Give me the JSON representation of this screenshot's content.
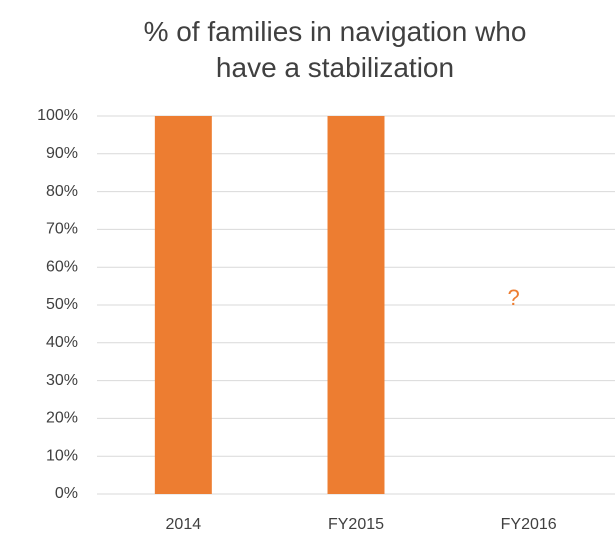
{
  "chart_data": {
    "type": "bar",
    "title": "% of families in navigation who have a stabilization",
    "categories": [
      "2014",
      "FY2015",
      "FY2016"
    ],
    "values": [
      100,
      100,
      null
    ],
    "color": "#ed7d31",
    "ylim": [
      0,
      100
    ],
    "yticks": [
      {
        "value": 0,
        "label": "0%"
      },
      {
        "value": 10,
        "label": "10%"
      },
      {
        "value": 20,
        "label": "20%"
      },
      {
        "value": 30,
        "label": "30%"
      },
      {
        "value": 40,
        "label": "40%"
      },
      {
        "value": 50,
        "label": "50%"
      },
      {
        "value": 60,
        "label": "60%"
      },
      {
        "value": 70,
        "label": "70%"
      },
      {
        "value": 80,
        "label": "80%"
      },
      {
        "value": 90,
        "label": "90%"
      },
      {
        "value": 100,
        "label": "100%"
      }
    ],
    "grid": true,
    "annotations": [
      {
        "text": "?",
        "category": "FY2016"
      }
    ]
  }
}
